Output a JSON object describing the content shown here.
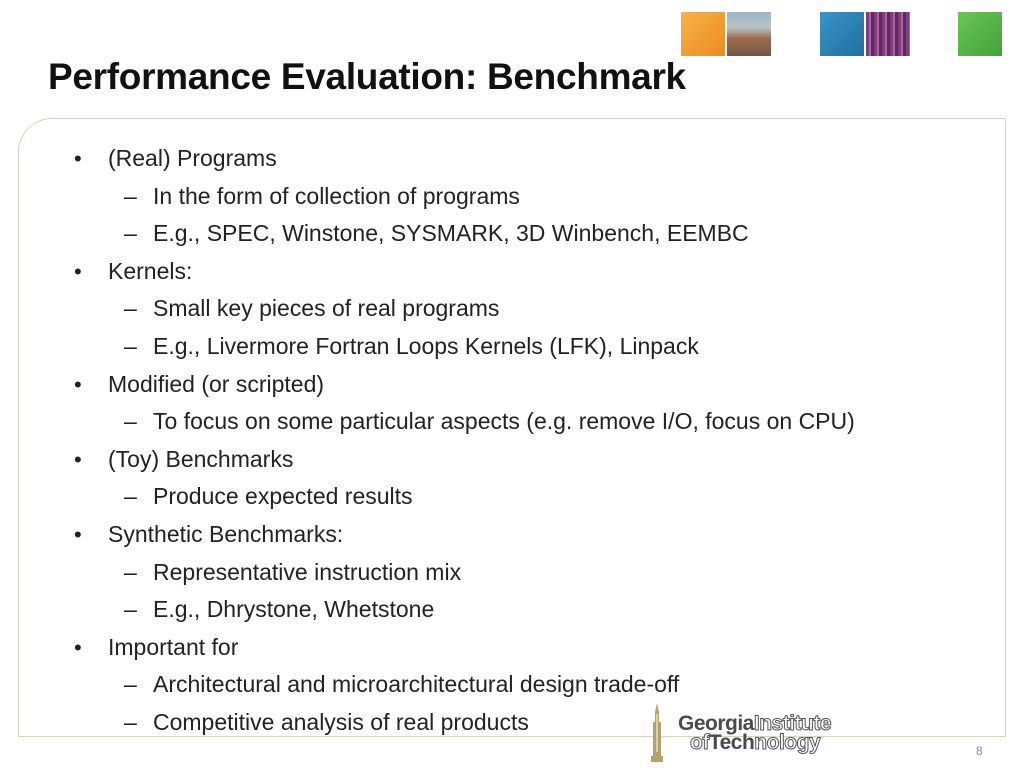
{
  "slide": {
    "title": "Performance Evaluation: Benchmark",
    "page_number": "8",
    "bullet_mark": "•",
    "dash_mark": "–"
  },
  "bullets": [
    {
      "level": 1,
      "text": "(Real) Programs"
    },
    {
      "level": 2,
      "text": "In the form of collection of programs"
    },
    {
      "level": 2,
      "text": "E.g., SPEC, Winstone, SYSMARK, 3D Winbench, EEMBC"
    },
    {
      "level": 1,
      "text": "Kernels:"
    },
    {
      "level": 2,
      "text": "Small key pieces of real programs"
    },
    {
      "level": 2,
      "text": "E.g., Livermore Fortran Loops Kernels (LFK), Linpack"
    },
    {
      "level": 1,
      "text": "Modified (or scripted)"
    },
    {
      "level": 2,
      "text": "To focus on some particular aspects (e.g. remove I/O, focus on CPU)"
    },
    {
      "level": 1,
      "text": "(Toy) Benchmarks"
    },
    {
      "level": 2,
      "text": "Produce expected results"
    },
    {
      "level": 1,
      "text": "Synthetic Benchmarks:"
    },
    {
      "level": 2,
      "text": "Representative instruction mix"
    },
    {
      "level": 2,
      "text": "E.g., Dhrystone, Whetstone"
    },
    {
      "level": 1,
      "text": "Important for"
    },
    {
      "level": 2,
      "text": "Architectural and microarchitectural design trade-off"
    },
    {
      "level": 2,
      "text": "Competitive analysis of real products"
    }
  ],
  "logo": {
    "line1_bold": "Georgia",
    "line1_light": "Institute",
    "line2_light": "of",
    "line2_bold": "Tech",
    "line2_light2": "nology"
  },
  "colors": {
    "orange": "#f0962a",
    "blue": "#2f86b6",
    "green": "#5ab54a",
    "gold": "#b3a369",
    "frame": "#d9d2bc"
  }
}
